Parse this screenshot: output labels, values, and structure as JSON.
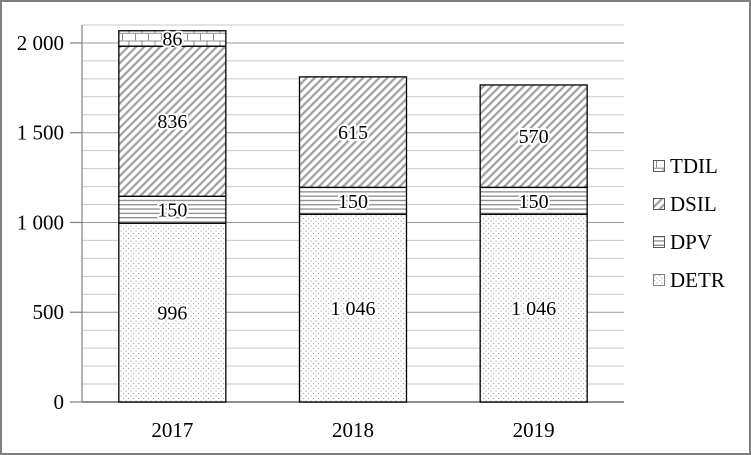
{
  "chart_data": {
    "type": "bar",
    "stacked": true,
    "title": "",
    "xlabel": "",
    "ylabel": "",
    "categories": [
      "2017",
      "2018",
      "2019"
    ],
    "series": [
      {
        "name": "DETR",
        "pattern": "dots",
        "values": [
          996,
          1046,
          1046
        ],
        "labels": [
          "996",
          "1 046",
          "1 046"
        ]
      },
      {
        "name": "DPV",
        "pattern": "hlines",
        "values": [
          150,
          150,
          150
        ],
        "labels": [
          "150",
          "150",
          "150"
        ]
      },
      {
        "name": "DSIL",
        "pattern": "diag",
        "values": [
          836,
          615,
          570
        ],
        "labels": [
          "836",
          "615",
          "570"
        ]
      },
      {
        "name": "TDIL",
        "pattern": "brick",
        "values": [
          86,
          0,
          0
        ],
        "labels": [
          "86",
          "",
          ""
        ]
      }
    ],
    "ylim": [
      0,
      2100
    ],
    "gridline_step": 100,
    "grid": true,
    "y_ticks": [
      {
        "value": 0,
        "label": "0"
      },
      {
        "value": 500,
        "label": "500"
      },
      {
        "value": 1000,
        "label": "1 000"
      },
      {
        "value": 1500,
        "label": "1 500"
      },
      {
        "value": 2000,
        "label": "2 000"
      }
    ],
    "legend_position": "right",
    "legend_order": [
      "TDIL",
      "DSIL",
      "DPV",
      "DETR"
    ]
  },
  "colors": {
    "background": "#ffffff",
    "figure_border": "#7f7f7f",
    "grid_minor": "#c9c9c9",
    "grid_major": "#9a9a9a",
    "axis": "#808080",
    "bar_outline": "#000000",
    "pattern_gray": "#a3a3a3",
    "text": "#000000"
  }
}
